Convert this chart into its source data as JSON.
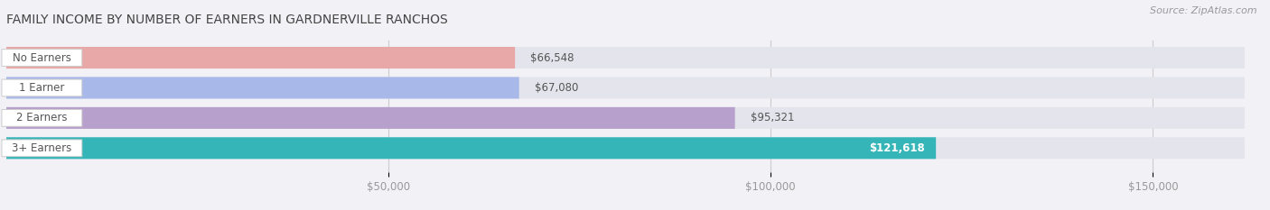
{
  "title": "FAMILY INCOME BY NUMBER OF EARNERS IN GARDNERVILLE RANCHOS",
  "source": "Source: ZipAtlas.com",
  "categories": [
    "No Earners",
    "1 Earner",
    "2 Earners",
    "3+ Earners"
  ],
  "values": [
    66548,
    67080,
    95321,
    121618
  ],
  "bar_colors": [
    "#e8a8a8",
    "#a8b8e8",
    "#b8a0cc",
    "#35b5b8"
  ],
  "label_colors": [
    "#555555",
    "#555555",
    "#555555",
    "#ffffff"
  ],
  "value_labels": [
    "$66,548",
    "$67,080",
    "$95,321",
    "$121,618"
  ],
  "background_color": "#f2f2f6",
  "bar_bg_color": "#e4e4ec",
  "row_bg_color": "#ffffff",
  "xmin": 0,
  "xmax": 162000,
  "xticks": [
    50000,
    100000,
    150000
  ],
  "xtick_labels": [
    "$50,000",
    "$100,000",
    "$150,000"
  ],
  "title_fontsize": 10,
  "source_fontsize": 8,
  "label_fontsize": 8.5,
  "value_fontsize": 8.5
}
